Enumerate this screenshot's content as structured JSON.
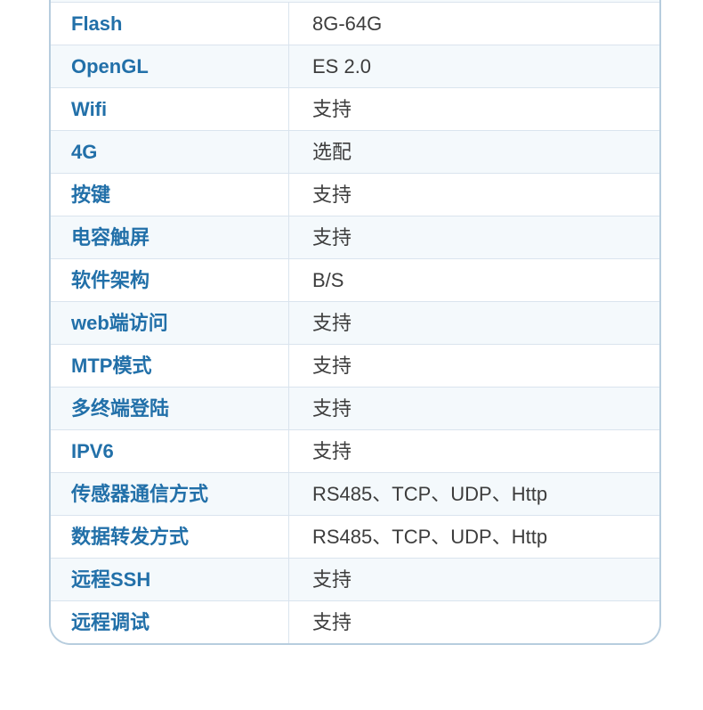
{
  "table": {
    "rows": [
      {
        "label": "Flash",
        "value": "8G-64G"
      },
      {
        "label": "OpenGL",
        "value": "ES 2.0"
      },
      {
        "label": "Wifi",
        "value": "支持"
      },
      {
        "label": "4G",
        "value": "选配"
      },
      {
        "label": "按键",
        "value": "支持"
      },
      {
        "label": "电容触屏",
        "value": "支持"
      },
      {
        "label": "软件架构",
        "value": "B/S"
      },
      {
        "label": "web端访问",
        "value": "支持"
      },
      {
        "label": "MTP模式",
        "value": "支持"
      },
      {
        "label": "多终端登陆",
        "value": "支持"
      },
      {
        "label": "IPV6",
        "value": "支持"
      },
      {
        "label": "传感器通信方式",
        "value": "RS485、TCP、UDP、Http"
      },
      {
        "label": "数据转发方式",
        "value": "RS485、TCP、UDP、Http"
      },
      {
        "label": "远程SSH",
        "value": "支持"
      },
      {
        "label": "远程调试",
        "value": "支持"
      }
    ]
  },
  "colors": {
    "label_text": "#2270a9",
    "value_text": "#3d3d3d",
    "alt_row_bg": "#f4f9fc",
    "outer_border": "#b7cdde",
    "inner_border": "#dae4ee"
  }
}
